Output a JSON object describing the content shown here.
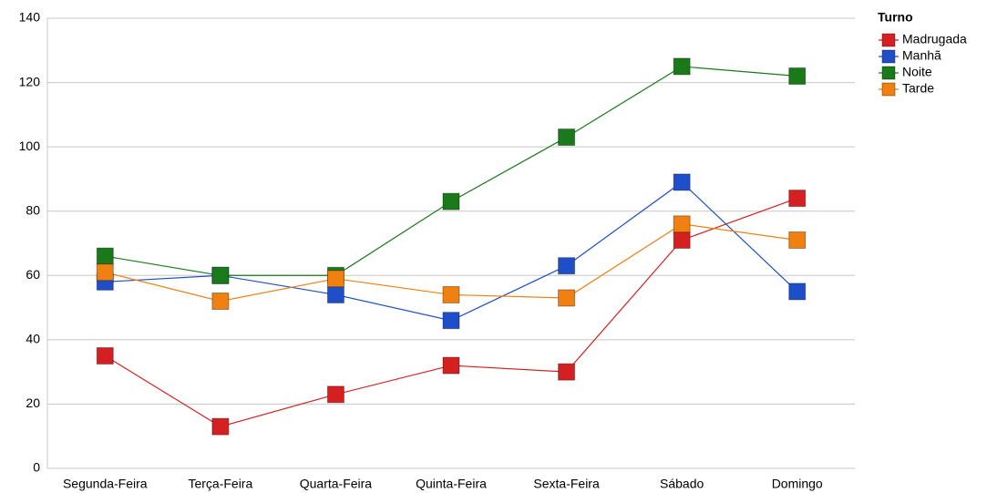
{
  "chart_data": {
    "type": "line",
    "categories": [
      "Segunda-Feira",
      "Terça-Feira",
      "Quarta-Feira",
      "Quinta-Feira",
      "Sexta-Feira",
      "Sábado",
      "Domingo"
    ],
    "legend_title": "Turno",
    "series": [
      {
        "name": "Madrugada",
        "color": "#d42020",
        "values": [
          35,
          13,
          23,
          32,
          30,
          71,
          84
        ]
      },
      {
        "name": "Manhã",
        "color": "#1f4fc8",
        "values": [
          58,
          60,
          54,
          46,
          63,
          89,
          55
        ]
      },
      {
        "name": "Noite",
        "color": "#1a7a1a",
        "values": [
          66,
          60,
          60,
          83,
          103,
          125,
          122
        ]
      },
      {
        "name": "Tarde",
        "color": "#f08010",
        "values": [
          61,
          52,
          59,
          54,
          53,
          76,
          71
        ]
      }
    ],
    "ylim": [
      0,
      140
    ],
    "yticks": [
      0,
      20,
      40,
      60,
      80,
      100,
      120,
      140
    ],
    "grid": true,
    "legend": "top-right"
  }
}
